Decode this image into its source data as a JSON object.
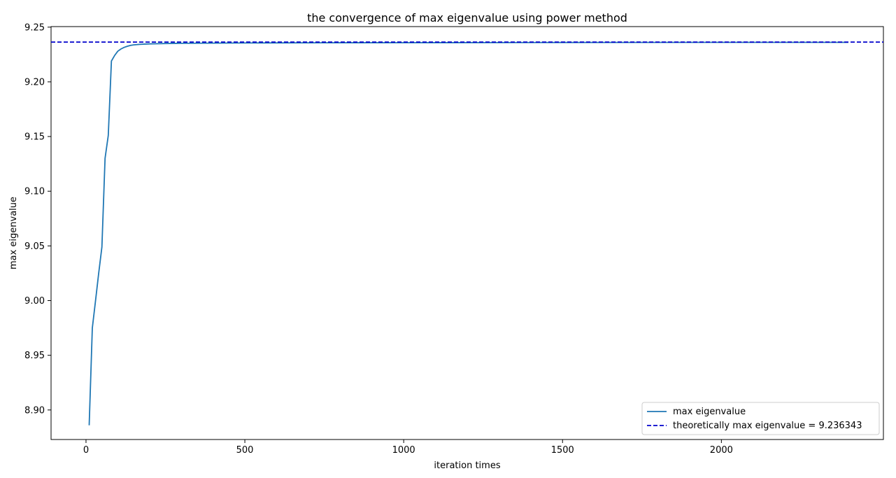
{
  "chart_data": {
    "type": "line",
    "title": "the convergence of max eigenvalue using power method",
    "xlabel": "iteration times",
    "ylabel": "max eigenvalue",
    "xlim": [
      -110,
      2510
    ],
    "ylim": [
      8.873,
      9.2505
    ],
    "xticks": [
      0,
      500,
      1000,
      1500,
      2000
    ],
    "xtick_labels": [
      "0",
      "500",
      "1000",
      "1500",
      "2000"
    ],
    "yticks": [
      8.9,
      8.95,
      9.0,
      9.05,
      9.1,
      9.15,
      9.2,
      9.25
    ],
    "ytick_labels": [
      "8.90",
      "8.95",
      "9.00",
      "9.05",
      "9.10",
      "9.15",
      "9.20",
      "9.25"
    ],
    "grid": false,
    "legend_position": "lower-right",
    "series": [
      {
        "name": "max eigenvalue",
        "style": "solid",
        "color": "#1f77b4",
        "x": [
          10,
          20,
          30,
          40,
          50,
          60,
          70,
          80,
          90,
          100,
          110,
          120,
          130,
          140,
          150,
          170,
          200,
          250,
          300,
          400,
          500,
          750,
          1000,
          1500,
          2000,
          2400
        ],
        "y": [
          8.886,
          8.975,
          9.0,
          9.025,
          9.049,
          9.13,
          9.151,
          9.219,
          9.224,
          9.228,
          9.23,
          9.2315,
          9.2325,
          9.2333,
          9.2338,
          9.2343,
          9.2347,
          9.235,
          9.2352,
          9.2354,
          9.2355,
          9.2357,
          9.2358,
          9.236,
          9.2361,
          9.2361
        ]
      },
      {
        "name": "theoretically max eigenvalue = 9.236343",
        "style": "dashed",
        "color": "#0000cc",
        "value": 9.236343
      }
    ]
  }
}
